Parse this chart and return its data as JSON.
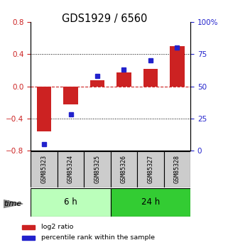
{
  "title": "GDS1929 / 6560",
  "samples": [
    "GSM85323",
    "GSM85324",
    "GSM85325",
    "GSM85326",
    "GSM85327",
    "GSM85328"
  ],
  "log2_ratio": [
    -0.56,
    -0.22,
    0.08,
    0.17,
    0.22,
    0.5
  ],
  "percentile_rank": [
    5,
    28,
    58,
    63,
    70,
    80
  ],
  "bar_color": "#cc2222",
  "marker_color": "#2222cc",
  "left_ylim": [
    -0.8,
    0.8
  ],
  "right_ylim": [
    0,
    100
  ],
  "left_yticks": [
    -0.8,
    -0.4,
    0.0,
    0.4,
    0.8
  ],
  "right_yticks": [
    0,
    25,
    50,
    75,
    100
  ],
  "right_yticklabels": [
    "0",
    "25",
    "50",
    "75",
    "100%"
  ],
  "groups": [
    {
      "label": "6 h",
      "indices": [
        0,
        1,
        2
      ],
      "color": "#bbffbb"
    },
    {
      "label": "24 h",
      "indices": [
        3,
        4,
        5
      ],
      "color": "#33cc33"
    }
  ],
  "group_box_color": "#cccccc",
  "hline_zero_color": "#cc2222",
  "hline_dotted_color": "#000000",
  "time_label": "time",
  "legend_items": [
    {
      "label": "log2 ratio",
      "color": "#cc2222"
    },
    {
      "label": "percentile rank within the sample",
      "color": "#2222cc"
    }
  ],
  "bar_width": 0.55,
  "marker_size": 5
}
